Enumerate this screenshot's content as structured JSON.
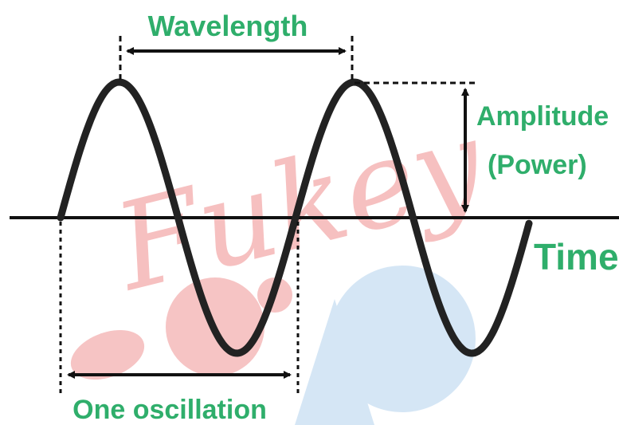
{
  "labels": {
    "wavelength": "Wavelength",
    "amplitude": "Amplitude",
    "power": "(Power)",
    "time": "Time",
    "one_oscillation": "One oscillation"
  },
  "watermark": {
    "text": "Fukey"
  },
  "colors": {
    "label_green": "#2fae6b",
    "wave": "#222222",
    "axis": "#111111",
    "watermark_red": "#f3a6a6",
    "watermark_blue": "#d5e6f5"
  }
}
